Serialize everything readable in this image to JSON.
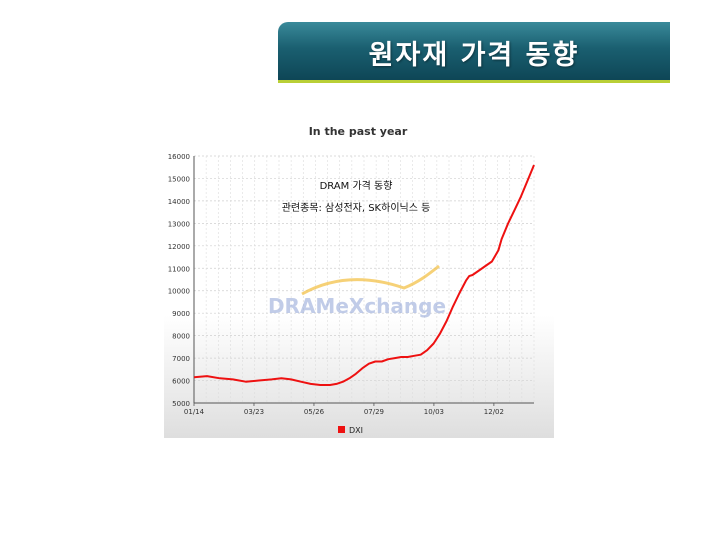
{
  "slide": {
    "title": "원자재 가격 동향"
  },
  "chart_data": {
    "type": "line",
    "title": "In the past year",
    "annotation_line1": "DRAM 가격 동향",
    "annotation_line2": "관련종목: 삼성전자, SK하이닉스 등",
    "watermark": "DRAMeXchange",
    "legend_position": "bottom-center",
    "grid": true,
    "ylim": [
      5000,
      16000
    ],
    "yticks": [
      5000,
      6000,
      7000,
      8000,
      9000,
      10000,
      11000,
      12000,
      13000,
      14000,
      15000,
      16000
    ],
    "xticks": [
      "01/14",
      "03/23",
      "05/26",
      "07/29",
      "10/03",
      "12/02"
    ],
    "series": [
      {
        "name": "DXI",
        "color": "#ee1111",
        "points": [
          [
            0,
            6150
          ],
          [
            4,
            6200
          ],
          [
            8,
            6100
          ],
          [
            12,
            6050
          ],
          [
            16,
            5950
          ],
          [
            20,
            6000
          ],
          [
            24,
            6050
          ],
          [
            27,
            6100
          ],
          [
            30,
            6050
          ],
          [
            33,
            5950
          ],
          [
            36,
            5850
          ],
          [
            39,
            5800
          ],
          [
            42,
            5800
          ],
          [
            44,
            5850
          ],
          [
            46,
            5950
          ],
          [
            48,
            6100
          ],
          [
            50,
            6300
          ],
          [
            52,
            6550
          ],
          [
            54,
            6750
          ],
          [
            56,
            6850
          ],
          [
            58,
            6850
          ],
          [
            60,
            6950
          ],
          [
            62,
            7000
          ],
          [
            64,
            7050
          ],
          [
            66,
            7050
          ],
          [
            68,
            7100
          ],
          [
            70,
            7150
          ],
          [
            72,
            7350
          ],
          [
            74,
            7650
          ],
          [
            76,
            8100
          ],
          [
            78,
            8650
          ],
          [
            80,
            9300
          ],
          [
            82,
            9900
          ],
          [
            84,
            10450
          ],
          [
            85,
            10650
          ],
          [
            86,
            10700
          ],
          [
            88,
            10900
          ],
          [
            90,
            11100
          ],
          [
            92,
            11300
          ],
          [
            94,
            11800
          ],
          [
            95,
            12300
          ],
          [
            97,
            13000
          ],
          [
            99,
            13600
          ],
          [
            101,
            14200
          ],
          [
            103,
            14900
          ],
          [
            105,
            15600
          ]
        ]
      }
    ]
  }
}
